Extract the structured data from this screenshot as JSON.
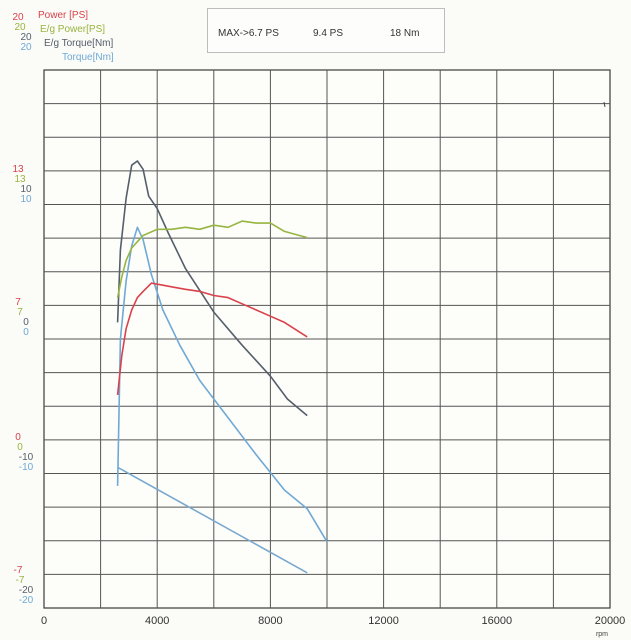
{
  "header": {
    "max_label": "MAX->6.7 PS",
    "power2_label": "9.4 PS",
    "torque_label": "18 Nm"
  },
  "legend": [
    {
      "label": "Power   [PS]",
      "color": "#d9424b"
    },
    {
      "label": "E/g Power[PS]",
      "color": "#97b540"
    },
    {
      "label": "E/g Torque[Nm]",
      "color": "#555f6b"
    },
    {
      "label": "Torque[Nm]",
      "color": "#6fa9d6"
    }
  ],
  "left_axis_groups": [
    {
      "items": [
        {
          "text": "20",
          "color": "#d9424b"
        },
        {
          "text": "20",
          "color": "#97b540"
        },
        {
          "text": "20",
          "color": "#555f6b"
        },
        {
          "text": "20",
          "color": "#6fa9d6"
        }
      ]
    },
    {
      "items": [
        {
          "text": "13",
          "color": "#d9424b"
        },
        {
          "text": "13",
          "color": "#97b540"
        },
        {
          "text": "10",
          "color": "#555f6b"
        },
        {
          "text": "10",
          "color": "#6fa9d6"
        }
      ]
    },
    {
      "items": [
        {
          "text": "7",
          "color": "#d9424b"
        },
        {
          "text": "7",
          "color": "#97b540"
        },
        {
          "text": "0",
          "color": "#555f6b"
        },
        {
          "text": "0",
          "color": "#6fa9d6"
        }
      ]
    },
    {
      "items": [
        {
          "text": "0",
          "color": "#d9424b"
        },
        {
          "text": "0",
          "color": "#97b540"
        },
        {
          "text": "-10",
          "color": "#555f6b"
        },
        {
          "text": "-10",
          "color": "#6fa9d6"
        }
      ]
    },
    {
      "items": [
        {
          "text": "-7",
          "color": "#d9424b"
        },
        {
          "text": "-7",
          "color": "#97b540"
        },
        {
          "text": "-20",
          "color": "#555f6b"
        },
        {
          "text": "-20",
          "color": "#6fa9d6"
        }
      ]
    }
  ],
  "x_axis_unit": "rpm",
  "chart_data": {
    "type": "line",
    "grid": true,
    "xlabel": "rpm",
    "xlim": [
      0,
      20000
    ],
    "x_ticks": [
      "0",
      "4000",
      "8000",
      "12000",
      "16000",
      "20000"
    ],
    "title": "",
    "series": [
      {
        "name": "E/g Torque[Nm]",
        "color": "#555f6b",
        "x": [
          2600,
          2700,
          2900,
          3100,
          3300,
          3500,
          3700,
          4000,
          4400,
          5000,
          6000,
          7000,
          8000,
          8600,
          9300
        ],
        "y": [
          4.8,
          8.3,
          10.8,
          12.4,
          12.6,
          12.2,
          10.9,
          10.3,
          9.1,
          7.4,
          5.3,
          3.7,
          2.2,
          1.1,
          0.3
        ]
      },
      {
        "name": "Torque[Nm]",
        "color": "#6fa9d6",
        "x": [
          2600,
          2700,
          2900,
          3100,
          3300,
          3500,
          3800,
          4200,
          4800,
          5500,
          6500,
          7500,
          8500,
          9300,
          10000
        ],
        "y": [
          -3.1,
          4.0,
          6.8,
          8.5,
          9.4,
          8.8,
          7.1,
          5.4,
          3.7,
          2.0,
          0.2,
          -1.6,
          -3.3,
          -4.2,
          -5.8
        ]
      },
      {
        "name": "E/g Power[PS]",
        "color": "#97b540",
        "x": [
          2600,
          2750,
          2900,
          3100,
          3300,
          3500,
          4000,
          4500,
          5000,
          5500,
          6000,
          6500,
          7000,
          7500,
          8000,
          8500,
          9300
        ],
        "y": [
          6.0,
          7.0,
          7.8,
          8.4,
          8.7,
          9.0,
          9.3,
          9.3,
          9.4,
          9.3,
          9.5,
          9.4,
          9.7,
          9.6,
          9.6,
          9.2,
          8.9
        ]
      },
      {
        "name": "Power   [PS]",
        "color": "#d9424b",
        "x": [
          2600,
          2750,
          2900,
          3100,
          3300,
          3500,
          3800,
          4200,
          4600,
          5000,
          5500,
          6000,
          6500,
          7000,
          7500,
          8000,
          8500,
          9300
        ],
        "y": [
          1.3,
          3.2,
          4.5,
          5.4,
          6.0,
          6.3,
          6.7,
          6.6,
          6.5,
          6.4,
          6.3,
          6.1,
          6.0,
          5.7,
          5.4,
          5.1,
          4.8,
          4.1
        ]
      },
      {
        "name": "Torque line (lower)",
        "color": "#7aa9cf",
        "x": [
          2600,
          9300
        ],
        "y": [
          -2.2,
          -7.3
        ]
      }
    ]
  }
}
